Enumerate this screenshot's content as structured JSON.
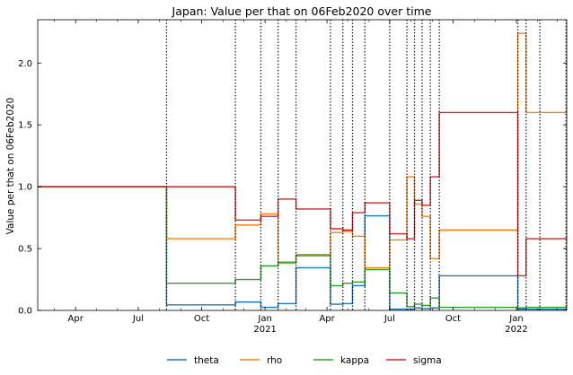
{
  "chart_data": {
    "type": "line",
    "title": "Japan: Value per that on 06Feb2020 over time",
    "xlabel": "",
    "ylabel": "Value per that on 06Feb2020",
    "x_range": [
      "2020-02-06",
      "2022-03-15"
    ],
    "ylim": [
      0,
      2.35
    ],
    "y_ticks": [
      0.0,
      0.5,
      1.0,
      1.5,
      2.0
    ],
    "y_tick_labels": [
      "0.0",
      "0.5",
      "1.0",
      "1.5",
      "2.0"
    ],
    "x_ticks": [
      {
        "date": "2020-04-01",
        "label": "Apr",
        "sublabel": ""
      },
      {
        "date": "2020-07-01",
        "label": "Jul",
        "sublabel": ""
      },
      {
        "date": "2020-10-01",
        "label": "Oct",
        "sublabel": ""
      },
      {
        "date": "2021-01-01",
        "label": "Jan",
        "sublabel": "2021"
      },
      {
        "date": "2021-04-01",
        "label": "Apr",
        "sublabel": ""
      },
      {
        "date": "2021-07-01",
        "label": "Jul",
        "sublabel": ""
      },
      {
        "date": "2021-10-01",
        "label": "Oct",
        "sublabel": ""
      },
      {
        "date": "2022-01-01",
        "label": "Jan",
        "sublabel": "2022"
      }
    ],
    "minor_ticks": [
      "2020-03-01",
      "2020-05-01",
      "2020-06-01",
      "2020-08-01",
      "2020-09-01",
      "2020-11-01",
      "2020-12-01",
      "2021-02-01",
      "2021-03-01",
      "2021-05-01",
      "2021-06-01",
      "2021-08-01",
      "2021-09-01",
      "2021-11-01",
      "2021-12-01",
      "2022-02-01",
      "2022-03-01"
    ],
    "vlines": [
      "2020-08-11",
      "2020-11-19",
      "2020-12-26",
      "2021-01-20",
      "2021-02-15",
      "2021-04-06",
      "2021-04-24",
      "2021-05-08",
      "2021-05-26",
      "2021-07-01",
      "2021-07-26",
      "2021-08-06",
      "2021-08-17",
      "2021-08-29",
      "2021-09-11",
      "2022-01-03",
      "2022-01-15",
      "2022-02-04",
      "2022-03-14"
    ],
    "grid": false,
    "legend_position": "bottom-center",
    "series": [
      {
        "name": "theta",
        "color": "#1f77b4",
        "steps": [
          [
            "2020-02-06",
            1.0
          ],
          [
            "2020-08-11",
            0.045
          ],
          [
            "2020-11-19",
            0.068
          ],
          [
            "2020-12-26",
            0.025
          ],
          [
            "2021-01-20",
            0.055
          ],
          [
            "2021-02-15",
            0.345
          ],
          [
            "2021-04-06",
            0.05
          ],
          [
            "2021-04-24",
            0.055
          ],
          [
            "2021-05-08",
            0.2
          ],
          [
            "2021-05-26",
            0.765
          ],
          [
            "2021-07-01",
            0.01
          ],
          [
            "2021-07-26",
            0.01
          ],
          [
            "2021-08-06",
            0.02
          ],
          [
            "2021-08-17",
            0.015
          ],
          [
            "2021-08-29",
            0.02
          ],
          [
            "2021-09-11",
            0.28
          ],
          [
            "2022-01-03",
            0.01
          ],
          [
            "2022-01-15",
            0.01
          ],
          [
            "2022-02-04",
            0.01
          ],
          [
            "2022-03-14",
            0.01
          ]
        ]
      },
      {
        "name": "rho",
        "color": "#ff7f0e",
        "steps": [
          [
            "2020-02-06",
            1.0
          ],
          [
            "2020-08-11",
            0.58
          ],
          [
            "2020-11-19",
            0.69
          ],
          [
            "2020-12-26",
            0.78
          ],
          [
            "2021-01-20",
            0.38
          ],
          [
            "2021-02-15",
            0.44
          ],
          [
            "2021-04-06",
            0.63
          ],
          [
            "2021-04-24",
            0.64
          ],
          [
            "2021-05-08",
            0.6
          ],
          [
            "2021-05-26",
            0.345
          ],
          [
            "2021-07-01",
            0.57
          ],
          [
            "2021-07-26",
            1.08
          ],
          [
            "2021-08-06",
            0.86
          ],
          [
            "2021-08-17",
            0.76
          ],
          [
            "2021-08-29",
            0.42
          ],
          [
            "2021-09-11",
            0.65
          ],
          [
            "2022-01-03",
            2.24
          ],
          [
            "2022-01-15",
            1.6
          ],
          [
            "2022-02-04",
            1.6
          ],
          [
            "2022-03-14",
            1.6
          ]
        ]
      },
      {
        "name": "kappa",
        "color": "#2ca02c",
        "steps": [
          [
            "2020-02-06",
            1.0
          ],
          [
            "2020-08-11",
            0.22
          ],
          [
            "2020-11-19",
            0.25
          ],
          [
            "2020-12-26",
            0.36
          ],
          [
            "2021-01-20",
            0.39
          ],
          [
            "2021-02-15",
            0.45
          ],
          [
            "2021-04-06",
            0.2
          ],
          [
            "2021-04-24",
            0.22
          ],
          [
            "2021-05-08",
            0.23
          ],
          [
            "2021-05-26",
            0.33
          ],
          [
            "2021-07-01",
            0.14
          ],
          [
            "2021-07-26",
            0.03
          ],
          [
            "2021-08-06",
            0.05
          ],
          [
            "2021-08-17",
            0.04
          ],
          [
            "2021-08-29",
            0.1
          ],
          [
            "2021-09-11",
            0.025
          ],
          [
            "2022-01-03",
            0.02
          ],
          [
            "2022-01-15",
            0.025
          ],
          [
            "2022-02-04",
            0.025
          ],
          [
            "2022-03-14",
            0.025
          ]
        ]
      },
      {
        "name": "sigma",
        "color": "#d62728",
        "steps": [
          [
            "2020-02-06",
            1.0
          ],
          [
            "2020-08-11",
            1.0
          ],
          [
            "2020-11-19",
            0.73
          ],
          [
            "2020-12-26",
            0.76
          ],
          [
            "2021-01-20",
            0.9
          ],
          [
            "2021-02-15",
            0.82
          ],
          [
            "2021-04-06",
            0.66
          ],
          [
            "2021-04-24",
            0.65
          ],
          [
            "2021-05-08",
            0.79
          ],
          [
            "2021-05-26",
            0.87
          ],
          [
            "2021-07-01",
            0.62
          ],
          [
            "2021-07-26",
            0.58
          ],
          [
            "2021-08-06",
            0.89
          ],
          [
            "2021-08-17",
            0.85
          ],
          [
            "2021-08-29",
            1.08
          ],
          [
            "2021-09-11",
            1.6
          ],
          [
            "2022-01-03",
            0.28
          ],
          [
            "2022-01-15",
            0.58
          ],
          [
            "2022-02-04",
            0.58
          ],
          [
            "2022-03-14",
            0.58
          ]
        ]
      }
    ]
  }
}
